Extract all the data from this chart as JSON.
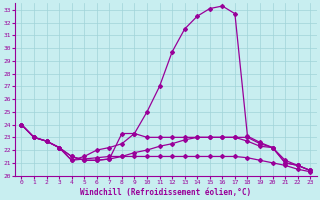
{
  "xlabel": "Windchill (Refroidissement éolien,°C)",
  "xlim": [
    -0.5,
    23.5
  ],
  "ylim": [
    20,
    33.5
  ],
  "xticks": [
    0,
    1,
    2,
    3,
    4,
    5,
    6,
    7,
    8,
    9,
    10,
    11,
    12,
    13,
    14,
    15,
    16,
    17,
    18,
    19,
    20,
    21,
    22,
    23
  ],
  "yticks": [
    20,
    21,
    22,
    23,
    24,
    25,
    26,
    27,
    28,
    29,
    30,
    31,
    32,
    33
  ],
  "bg_color": "#c8eef0",
  "line_color": "#990099",
  "grid_color": "#a0d4d8",
  "line1_y": [
    24.0,
    23.0,
    22.7,
    22.2,
    21.2,
    21.5,
    22.0,
    22.2,
    22.5,
    23.3,
    25.0,
    27.0,
    29.7,
    31.5,
    32.5,
    33.1,
    33.3,
    32.7,
    23.1,
    22.6,
    22.2,
    21.2,
    20.8,
    20.4
  ],
  "line2_y": [
    24.0,
    23.0,
    22.7,
    22.2,
    21.2,
    21.3,
    21.4,
    21.5,
    21.5,
    21.5,
    21.5,
    21.5,
    21.5,
    21.5,
    21.5,
    21.5,
    21.5,
    21.5,
    21.4,
    21.2,
    21.0,
    20.8,
    20.5,
    20.3
  ],
  "line3_y": [
    24.0,
    23.0,
    22.7,
    22.2,
    21.5,
    21.2,
    21.2,
    21.3,
    23.3,
    23.3,
    23.0,
    23.0,
    23.0,
    23.0,
    23.0,
    23.0,
    23.0,
    23.0,
    22.7,
    22.3,
    22.2,
    21.0,
    20.8,
    20.4
  ],
  "line4_y": [
    24.0,
    23.0,
    22.7,
    22.2,
    21.5,
    21.2,
    21.2,
    21.3,
    21.5,
    21.8,
    22.0,
    22.3,
    22.5,
    22.8,
    23.0,
    23.0,
    23.0,
    23.0,
    23.0,
    22.5,
    22.2,
    21.0,
    20.8,
    20.4
  ]
}
